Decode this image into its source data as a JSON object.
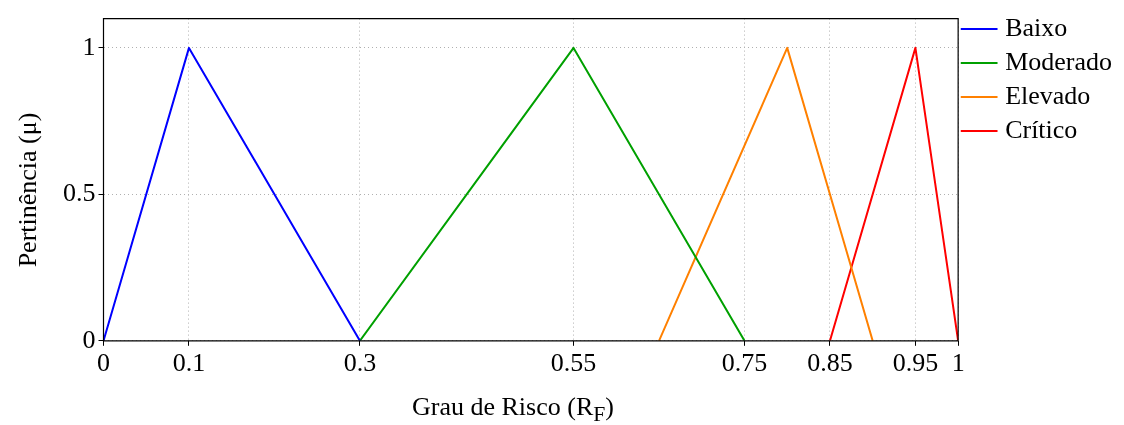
{
  "chart_data": {
    "type": "line",
    "xlabel": "Grau de Risco (R$_{F}$)",
    "ylabel": "Pertinência (μ)",
    "series": [
      {
        "name": "Baixo",
        "color": "#0000ff",
        "x": [
          0,
          0.1,
          0.3
        ],
        "values": [
          0,
          1,
          0
        ]
      },
      {
        "name": "Moderado",
        "color": "#00a000",
        "x": [
          0.3,
          0.55,
          0.75
        ],
        "values": [
          0,
          1,
          0
        ]
      },
      {
        "name": "Elevado",
        "color": "#ff8000",
        "x": [
          0.65,
          0.8,
          0.9
        ],
        "values": [
          0,
          1,
          0
        ]
      },
      {
        "name": "Crítico",
        "color": "#ff0000",
        "x": [
          0.85,
          0.95,
          1
        ],
        "values": [
          0,
          1,
          0
        ]
      }
    ],
    "xlim": [
      0,
      1
    ],
    "xticks": [
      0,
      0.1,
      0.3,
      0.55,
      0.75,
      0.85,
      0.95,
      1
    ],
    "ylim": [
      0,
      1.1
    ],
    "yticks": [
      0,
      0.5,
      1
    ],
    "grid": true,
    "legend": "top right",
    "marker": "none",
    "line_style": "solid"
  }
}
